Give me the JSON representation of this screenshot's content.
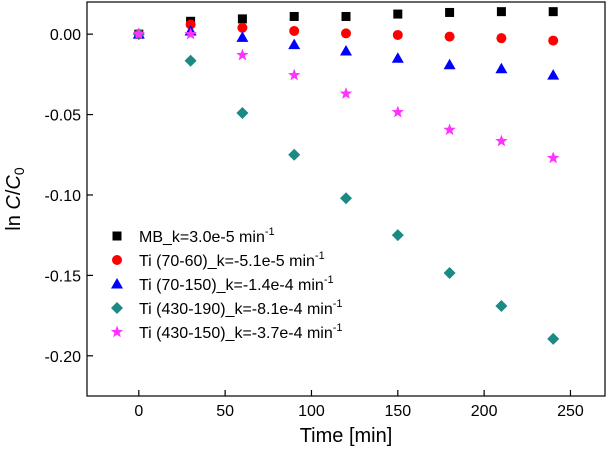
{
  "chart_data": {
    "type": "scatter",
    "title": "",
    "xlabel": "Time [min]",
    "ylabel": {
      "prefix": "ln ",
      "c": "C",
      "slash": "/",
      "c0": "C",
      "sub": "0"
    },
    "xlim": [
      -30,
      270
    ],
    "ylim": [
      -0.225,
      0.02
    ],
    "xticks": [
      0,
      50,
      100,
      150,
      200,
      250
    ],
    "xtick_labels": [
      "0",
      "50",
      "100",
      "150",
      "200",
      "250"
    ],
    "yticks": [
      0.0,
      -0.05,
      -0.1,
      -0.15,
      -0.2
    ],
    "ytick_labels": [
      "0.00",
      "-0.05",
      "-0.10",
      "-0.15",
      "-0.20"
    ],
    "legend_position": "bottom-left",
    "series": [
      {
        "name": "MB_k=3.0e-5 min",
        "sup": "-1",
        "marker": "square",
        "color": "#000000",
        "x": [
          0,
          30,
          60,
          90,
          120,
          150,
          180,
          210,
          240
        ],
        "y": [
          0.0,
          0.008,
          0.0095,
          0.011,
          0.011,
          0.0125,
          0.0135,
          0.014,
          0.014
        ]
      },
      {
        "name": "Ti (70-60)_k=-5.1e-5 min",
        "sup": "-1",
        "marker": "circle",
        "color": "#ff0000",
        "x": [
          0,
          30,
          60,
          90,
          120,
          150,
          180,
          210,
          240
        ],
        "y": [
          0.0,
          0.006,
          0.004,
          0.002,
          0.0005,
          -0.0005,
          -0.0015,
          -0.0025,
          -0.004
        ]
      },
      {
        "name": "Ti (70-150)_k=-1.4e-4 min",
        "sup": "-1",
        "marker": "triangle",
        "color": "#0000ff",
        "x": [
          0,
          30,
          60,
          90,
          120,
          150,
          180,
          210,
          240
        ],
        "y": [
          0.0,
          0.002,
          -0.002,
          -0.0065,
          -0.0105,
          -0.015,
          -0.019,
          -0.0215,
          -0.0255
        ]
      },
      {
        "name": "Ti (430-190)_k=-8.1e-4 min",
        "sup": "-1",
        "marker": "diamond",
        "color": "#1b8a84",
        "x": [
          0,
          30,
          60,
          90,
          120,
          150,
          180,
          210,
          240
        ],
        "y": [
          0.0,
          -0.0165,
          -0.049,
          -0.075,
          -0.102,
          -0.125,
          -0.1485,
          -0.169,
          -0.1895
        ]
      },
      {
        "name": "Ti (430-150)_k=-3.7e-4 min",
        "sup": "-1",
        "marker": "star",
        "color": "#ff33ff",
        "x": [
          0,
          30,
          60,
          90,
          120,
          150,
          180,
          210,
          240
        ],
        "y": [
          0.0,
          0.0,
          -0.013,
          -0.0255,
          -0.037,
          -0.0485,
          -0.0595,
          -0.0665,
          -0.077
        ]
      }
    ]
  }
}
